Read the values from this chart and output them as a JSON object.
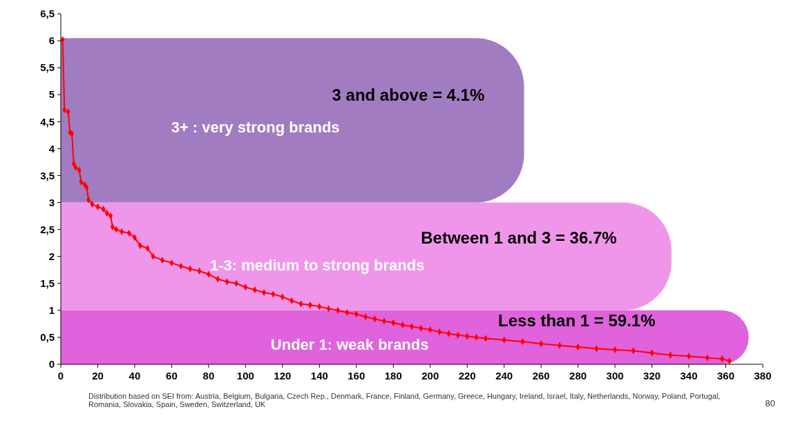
{
  "chart_data": {
    "type": "line",
    "xlim": [
      0,
      380
    ],
    "xticks": [
      0,
      20,
      40,
      60,
      80,
      100,
      120,
      140,
      160,
      180,
      200,
      220,
      240,
      260,
      280,
      300,
      320,
      340,
      360,
      380
    ],
    "ylim": [
      0,
      6.5
    ],
    "yticks": [
      0,
      {
        "value": 0.5,
        "label": "0,5"
      },
      1,
      {
        "value": 1.5,
        "label": "1,5"
      },
      2,
      {
        "value": 2.5,
        "label": "2,5"
      },
      3,
      {
        "value": 3.5,
        "label": "3,5"
      },
      4,
      {
        "value": 4.5,
        "label": "4,5"
      },
      5,
      {
        "value": 5.5,
        "label": "5,5"
      },
      6,
      {
        "value": 6.5,
        "label": "6,5"
      }
    ],
    "grid": false,
    "marker": "diamond",
    "line_style": "solid",
    "bands": [
      {
        "axis": "y",
        "from": 0,
        "to": 1,
        "label": "Under 1: weak brands",
        "color": "#e062dc"
      },
      {
        "axis": "y",
        "from": 1,
        "to": 3,
        "label": "1-3: medium to strong brands",
        "color": "#f096ea"
      },
      {
        "axis": "y",
        "from": 3,
        "to": 6.05,
        "label": "3+ : very strong brands",
        "color": "#a27cc0"
      }
    ],
    "series": [
      {
        "color": "#ff0000",
        "x": [
          1,
          2,
          4,
          5,
          6,
          7,
          8,
          10,
          11,
          13,
          14,
          15,
          17,
          20,
          23,
          25,
          27,
          28,
          30,
          33,
          37,
          40,
          43,
          47,
          50,
          55,
          60,
          65,
          70,
          75,
          80,
          85,
          90,
          95,
          100,
          105,
          110,
          115,
          120,
          125,
          130,
          135,
          140,
          145,
          150,
          155,
          160,
          165,
          170,
          175,
          180,
          185,
          190,
          195,
          200,
          205,
          210,
          215,
          220,
          225,
          230,
          240,
          250,
          260,
          270,
          280,
          290,
          300,
          310,
          320,
          330,
          340,
          350,
          358,
          362
        ],
        "values": [
          6.02,
          4.72,
          4.68,
          4.3,
          4.28,
          3.72,
          3.65,
          3.6,
          3.38,
          3.33,
          3.28,
          3.05,
          2.97,
          2.92,
          2.88,
          2.8,
          2.75,
          2.55,
          2.5,
          2.46,
          2.43,
          2.35,
          2.2,
          2.15,
          2,
          1.93,
          1.88,
          1.82,
          1.77,
          1.73,
          1.67,
          1.58,
          1.53,
          1.5,
          1.43,
          1.38,
          1.33,
          1.3,
          1.25,
          1.18,
          1.12,
          1.1,
          1.07,
          1.03,
          1,
          0.96,
          0.93,
          0.88,
          0.84,
          0.8,
          0.77,
          0.73,
          0.7,
          0.67,
          0.64,
          0.6,
          0.57,
          0.54,
          0.52,
          0.5,
          0.48,
          0.45,
          0.42,
          0.38,
          0.35,
          0.32,
          0.29,
          0.27,
          0.25,
          0.21,
          0.17,
          0.15,
          0.12,
          0.1,
          0.06
        ]
      }
    ],
    "annotations": [
      "3 and above = 4.1%",
      "Between 1 and 3 = 36.7%",
      "Less than 1 = 59.1%",
      "Distribution based on SEI from: Austria, Belgium, Bulgaria, Czech Rep., Denmark, France, Finland, Germany,  Greece, Hungary,  Ireland, Israel, Italy, Netherlands, Norway, Poland, Portugal,  Romania, Slovakia, Spain, Sweden, Switzerland, UK",
      "80"
    ]
  }
}
